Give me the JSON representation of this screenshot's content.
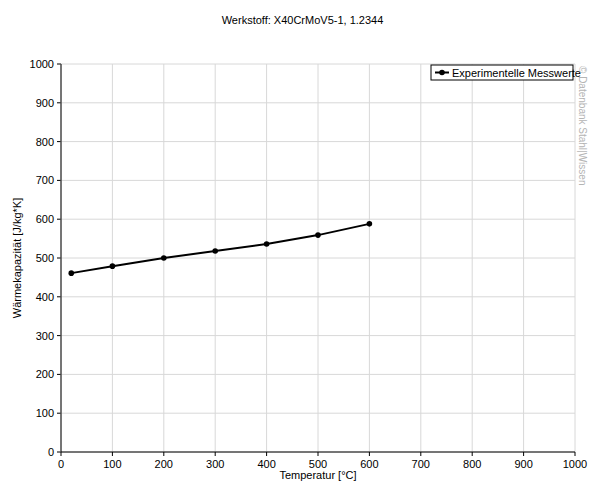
{
  "chart_data": {
    "type": "line",
    "title": "Werkstoff: X40CrMoV5-1, 1.2344",
    "x_label": "Temperatur [°C]",
    "y_label": "Wärmekapazität [J/kg*K]",
    "annotations": [
      "© Datenbank Stahl|Wissen"
    ],
    "x": [
      20,
      100,
      200,
      300,
      400,
      500,
      600
    ],
    "series": [
      {
        "name": "Experimentelle Messwerte",
        "color": "#000000",
        "marker": "circle",
        "line_style": "solid",
        "values": [
          461,
          479,
          500,
          518,
          536,
          559,
          588
        ]
      }
    ],
    "xlim": [
      0,
      1000
    ],
    "xticks": [
      0,
      100,
      200,
      300,
      400,
      500,
      600,
      700,
      800,
      900,
      1000
    ],
    "ylim": [
      0,
      1000
    ],
    "yticks": [
      0,
      100,
      200,
      300,
      400,
      500,
      600,
      700,
      800,
      900,
      1000
    ],
    "grid": true,
    "legend": "top-right"
  }
}
